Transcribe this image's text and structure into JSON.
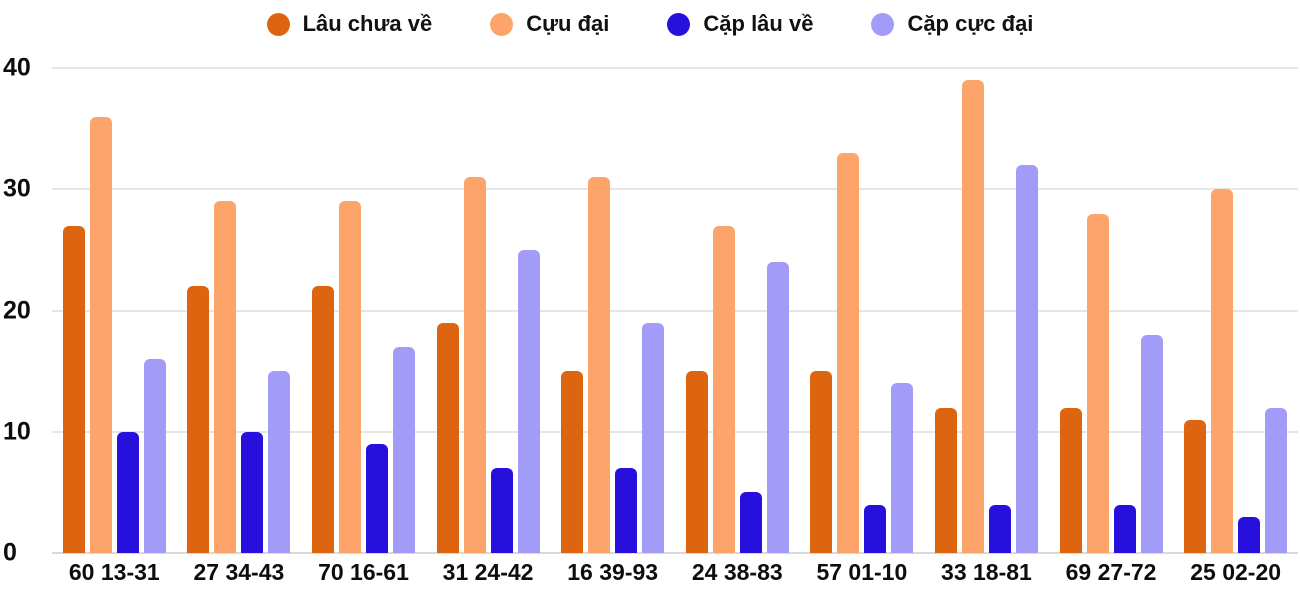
{
  "chart_data": {
    "type": "bar",
    "title": "",
    "xlabel": "",
    "ylabel": "",
    "categories": [
      "60 13-31",
      "27 34-43",
      "70 16-61",
      "31 24-42",
      "16 39-93",
      "24 38-83",
      "57 01-10",
      "33 18-81",
      "69 27-72",
      "25 02-20"
    ],
    "series": [
      {
        "name": "Lâu chưa về",
        "color": "#DE650F",
        "values": [
          27,
          22,
          22,
          19,
          15,
          15,
          15,
          12,
          12,
          11
        ]
      },
      {
        "name": "Cựu đại",
        "color": "#FCA46A",
        "values": [
          36,
          29,
          29,
          31,
          31,
          27,
          33,
          39,
          28,
          30
        ]
      },
      {
        "name": "Cặp lâu về",
        "color": "#2810DC",
        "values": [
          10,
          10,
          9,
          7,
          7,
          5,
          4,
          4,
          4,
          3
        ]
      },
      {
        "name": "Cặp cực đại",
        "color": "#A29BF7",
        "values": [
          16,
          15,
          17,
          25,
          19,
          24,
          14,
          32,
          18,
          12
        ]
      }
    ],
    "ylim": [
      0,
      40
    ],
    "yticks": [
      0,
      10,
      20,
      30,
      40
    ],
    "grid": true,
    "legend_position": "top"
  },
  "colors": {
    "gridline": "#E6E6E6",
    "baseline": "#D9D9D9",
    "axis_text": "#0D0D0D",
    "legend_text": "#111111",
    "background": "#FFFFFF"
  }
}
